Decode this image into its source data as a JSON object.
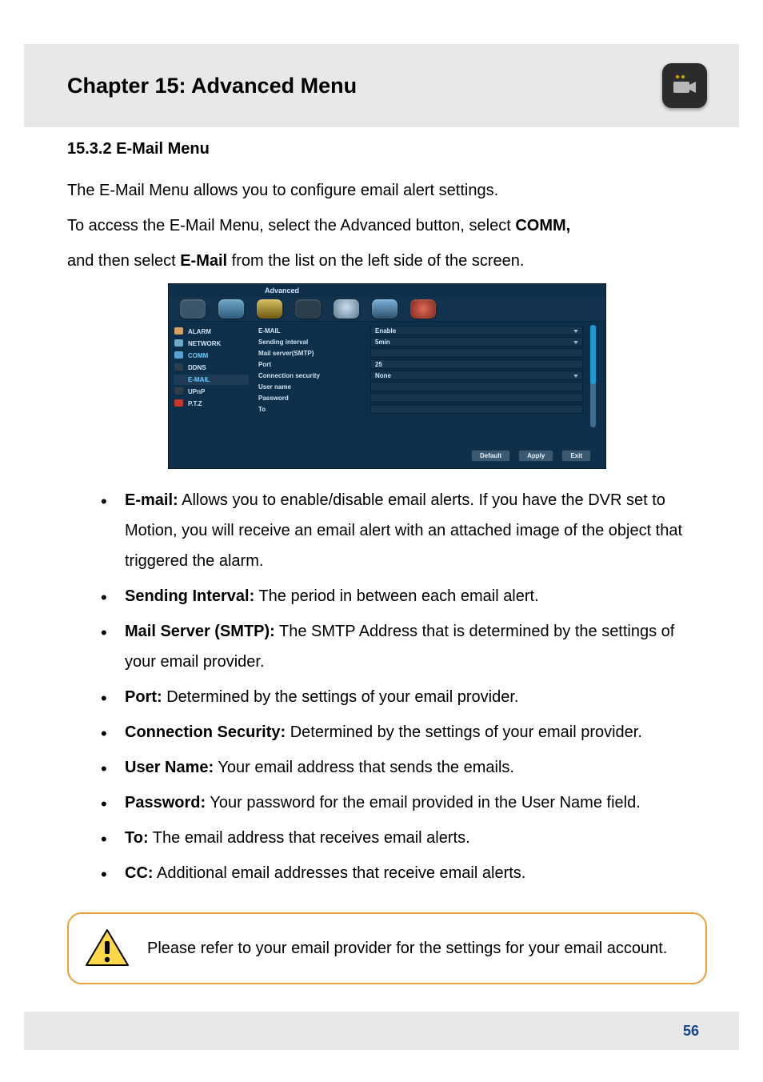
{
  "header": {
    "chapter_title": "Chapter 15: Advanced Menu"
  },
  "section": {
    "head": "15.3.2 E-Mail Menu",
    "line1": "The E-Mail Menu allows you to configure email alert settings.",
    "line2_a": "To access the E-Mail Menu, select the Advanced button, select ",
    "line2_b": "COMM,",
    "line3_a": "and then select ",
    "line3_b": "E-Mail",
    "line3_c": " from the list on the left side of the screen."
  },
  "screenshot": {
    "title": "Advanced",
    "sidebar": [
      "ALARM",
      "NETWORK",
      "COMM",
      "DDNS",
      "E-MAIL",
      "UPnP",
      "P.T.Z"
    ],
    "sidebar_active_index": 2,
    "sidebar_highlight_index": 4,
    "fields": [
      {
        "label": "E-MAIL",
        "value": "Enable",
        "drop": true
      },
      {
        "label": "Sending interval",
        "value": "5min",
        "drop": true
      },
      {
        "label": "Mail server(SMTP)",
        "value": "",
        "drop": false
      },
      {
        "label": "Port",
        "value": "25",
        "drop": false
      },
      {
        "label": "Connection security",
        "value": "None",
        "drop": true
      },
      {
        "label": "User name",
        "value": "",
        "drop": false
      },
      {
        "label": "Password",
        "value": "",
        "drop": false
      },
      {
        "label": "To",
        "value": "",
        "drop": false
      }
    ],
    "buttons": [
      "Default",
      "Apply",
      "Exit"
    ],
    "colors": {
      "panel_bg": "#0e2f4a",
      "form_bg": "#12324d",
      "field_bg": "#15354f",
      "field_border": "#062034",
      "text": "#cfe3f4",
      "active": "#6ec9ff",
      "scrollbar": "#3f6b8d",
      "scroll_thumb": "#1d9ad6",
      "btn_bg": "#3b5a72"
    }
  },
  "bullets": [
    {
      "term": "E-mail:",
      "desc": " Allows you to enable/disable email alerts. If you have the DVR set to Motion, you will receive an email alert with an attached image of the object that triggered the alarm."
    },
    {
      "term": "Sending Interval:",
      "desc": " The period in between each email alert."
    },
    {
      "term": "Mail Server (SMTP):",
      "desc": " The SMTP Address that is determined by the settings of your email provider."
    },
    {
      "term": "Port:",
      "desc": " Determined by the settings of your email provider."
    },
    {
      "term": "Connection Security:",
      "desc": " Determined by the settings of your email provider."
    },
    {
      "term": "User Name:",
      "desc": " Your email address that sends the emails."
    },
    {
      "term": "Password:",
      "desc": " Your password for the email provided in the User Name field."
    },
    {
      "term": "To:",
      "desc": " The email address that receives email alerts."
    },
    {
      "term": "CC:",
      "desc": " Additional email addresses that receive email alerts."
    }
  ],
  "note": {
    "text": "Please refer to your email provider for the settings for your email account."
  },
  "footer": {
    "page_number": "56"
  },
  "style": {
    "header_bg": "#e8e8e8",
    "note_border": "#e9a23b",
    "page_num_color": "#14458c",
    "body_font_size": 20,
    "title_font_size": 27
  }
}
